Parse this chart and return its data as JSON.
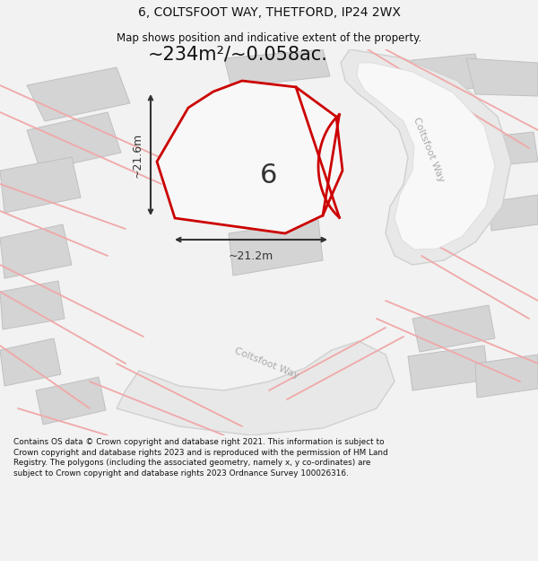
{
  "title": "6, COLTSFOOT WAY, THETFORD, IP24 2WX",
  "subtitle": "Map shows position and indicative extent of the property.",
  "area_text": "~234m²/~0.058ac.",
  "dim_width": "~21.2m",
  "dim_height": "~21.6m",
  "label_number": "6",
  "road_label_right": "Coltsfoot Way",
  "road_label_bottom": "Coltsfoot Way",
  "footer": "Contains OS data © Crown copyright and database right 2021. This information is subject to Crown copyright and database rights 2023 and is reproduced with the permission of HM Land Registry. The polygons (including the associated geometry, namely x, y co-ordinates) are subject to Crown copyright and database rights 2023 Ordnance Survey 100026316.",
  "bg_color": "#f2f2f2",
  "map_bg": "#ffffff",
  "plot_fill": "#f5f5f5",
  "plot_edge": "#cc0000",
  "pink_line": "#f0a8a8",
  "gray_bldg": "#d4d4d4",
  "gray_bldg_edge": "#c0c0c0",
  "road_gray": "#e0e0e0",
  "road_gray_edge": "#cccccc",
  "footer_color": "#111111",
  "title_color": "#111111",
  "dim_color": "#333333",
  "road_label_color": "#aaaaaa"
}
